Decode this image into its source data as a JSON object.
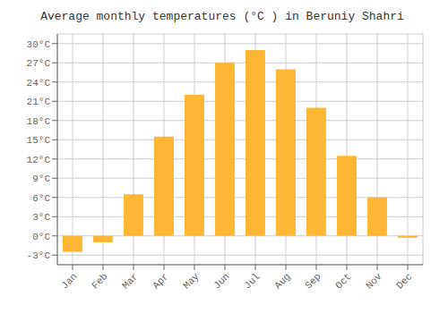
{
  "chart_data": {
    "type": "bar",
    "title": "Average monthly temperatures (°C ) in Beruniy Shahri",
    "categories": [
      "Jan",
      "Feb",
      "Mar",
      "Apr",
      "May",
      "Jun",
      "Jul",
      "Aug",
      "Sep",
      "Oct",
      "Nov",
      "Dec"
    ],
    "values": [
      -2.5,
      -1.0,
      6.5,
      15.5,
      22.0,
      27.0,
      29.0,
      26.0,
      20.0,
      12.5,
      6.0,
      -0.3
    ],
    "color": "#FFB733",
    "ylim": [
      -4.5,
      31.5
    ],
    "yticks": [
      {
        "value": -3,
        "label": "-3°C"
      },
      {
        "value": 0,
        "label": "0°C"
      },
      {
        "value": 3,
        "label": "3°C"
      },
      {
        "value": 6,
        "label": "6°C"
      },
      {
        "value": 9,
        "label": "9°C"
      },
      {
        "value": 12,
        "label": "12°C"
      },
      {
        "value": 15,
        "label": "15°C"
      },
      {
        "value": 18,
        "label": "18°C"
      },
      {
        "value": 21,
        "label": "21°C"
      },
      {
        "value": 24,
        "label": "24°C"
      },
      {
        "value": 27,
        "label": "27°C"
      },
      {
        "value": 30,
        "label": "30°C"
      }
    ],
    "grid": true
  }
}
